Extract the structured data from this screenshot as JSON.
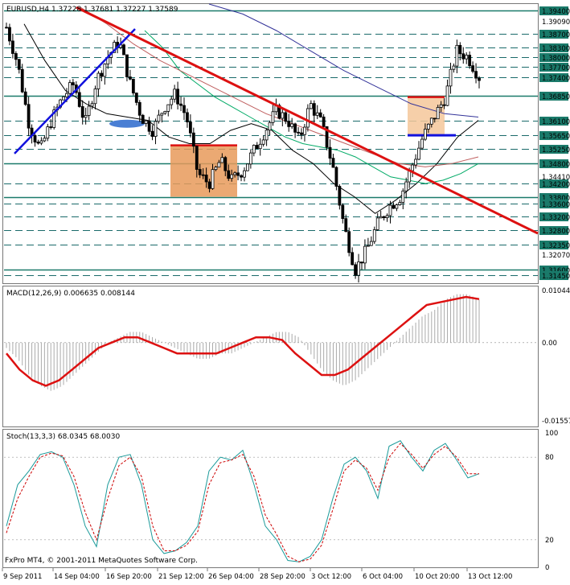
{
  "chart_data": [
    {
      "type": "candlestick",
      "title": "EURUSD,H4  1.37228 1.37681 1.37227 1.37589",
      "ylim": [
        1.312,
        1.396
      ],
      "x_ticks": [
        "9 Sep 2011",
        "14 Sep 04:00",
        "16 Sep 20:00",
        "21 Sep 12:00",
        "26 Sep 04:00",
        "28 Sep 20:00",
        "3 Oct 12:00",
        "6 Oct 04:00",
        "10 Oct 20:00",
        "13 Oct 12:00"
      ],
      "level_lines": [
        {
          "label": "1.39400",
          "value": 1.394,
          "style": "solid"
        },
        {
          "label": "1.38700",
          "value": 1.387,
          "style": "dashed"
        },
        {
          "label": "1.38300",
          "value": 1.383,
          "style": "dashed"
        },
        {
          "label": "1.38000",
          "value": 1.38,
          "style": "dashed"
        },
        {
          "label": "1.37700",
          "value": 1.377,
          "style": "dashed"
        },
        {
          "label": "1.36850",
          "value": 1.3685,
          "style": "solid"
        },
        {
          "label": "1.36100",
          "value": 1.361,
          "style": "dashed"
        },
        {
          "label": "1.35650",
          "value": 1.3565,
          "style": "dashed"
        },
        {
          "label": "1.35250",
          "value": 1.3525,
          "style": "dashed"
        },
        {
          "label": "1.34800",
          "value": 1.348,
          "style": "solid"
        },
        {
          "label": "1.34200",
          "value": 1.342,
          "style": "dashed"
        },
        {
          "label": "1.33800",
          "value": 1.338,
          "style": "solid"
        },
        {
          "label": "1.33600",
          "value": 1.336,
          "style": "dashed"
        },
        {
          "label": "1.33200",
          "value": 1.332,
          "style": "dashed"
        },
        {
          "label": "1.32800",
          "value": 1.328,
          "style": "dashed"
        },
        {
          "label": "1.32350",
          "value": 1.3235,
          "style": "dashed"
        },
        {
          "label": "1.31600",
          "value": 1.316,
          "style": "solid"
        },
        {
          "label": "1.31450",
          "value": 1.3145,
          "style": "dashed"
        }
      ],
      "price_labels": [
        {
          "label": "1.37400",
          "value": 1.374,
          "style": "dashed",
          "highlight": true
        },
        {
          "label": "1.39090",
          "value": 1.3909,
          "style": "none"
        },
        {
          "label": "1.34410",
          "value": 1.3441,
          "style": "none"
        },
        {
          "label": "1.32070",
          "value": 1.3207,
          "style": "none"
        }
      ],
      "close_path": [
        1.389,
        1.378,
        1.36,
        1.352,
        1.361,
        1.368,
        1.372,
        1.36,
        1.373,
        1.38,
        1.385,
        1.372,
        1.362,
        1.358,
        1.365,
        1.369,
        1.362,
        1.345,
        1.342,
        1.349,
        1.343,
        1.346,
        1.352,
        1.358,
        1.364,
        1.361,
        1.355,
        1.366,
        1.36,
        1.347,
        1.329,
        1.316,
        1.322,
        1.33,
        1.335,
        1.338,
        1.347,
        1.356,
        1.362,
        1.368,
        1.382,
        1.38,
        1.374
      ],
      "trend_lines": [
        {
          "color": "#2222dd",
          "from": [
            1.351
          ],
          "to": [
            1.389
          ]
        },
        {
          "color": "#dd1111",
          "from": [
            1.395
          ],
          "to": [
            1.327
          ]
        }
      ],
      "moving_averages": [
        {
          "color": "#000000",
          "points": [
            1.39,
            1.379,
            1.37,
            1.366,
            1.363,
            1.362,
            1.361,
            1.356,
            1.354,
            1.354,
            1.358,
            1.36,
            1.358,
            1.352,
            1.348,
            1.342,
            1.338,
            1.333,
            1.337,
            1.342,
            1.348,
            1.356,
            1.361
          ]
        },
        {
          "color": "#00aa66",
          "points": [
            1.388,
            1.383,
            1.376,
            1.372,
            1.368,
            1.365,
            1.362,
            1.359,
            1.356,
            1.354,
            1.353,
            1.352,
            1.35,
            1.347,
            1.344,
            1.343,
            1.342,
            1.343,
            1.345,
            1.348
          ]
        },
        {
          "color": "#c06060",
          "points": [
            1.395,
            1.39,
            1.384,
            1.379,
            1.375,
            1.371,
            1.367,
            1.363,
            1.36,
            1.357,
            1.354,
            1.351,
            1.348,
            1.347,
            1.348,
            1.35
          ]
        },
        {
          "color": "#333399",
          "points": [
            1.396,
            1.393,
            1.388,
            1.382,
            1.376,
            1.371,
            1.366,
            1.363,
            1.362
          ]
        }
      ],
      "boxes": [
        {
          "color": "#e89a5a",
          "y_top": 1.3535,
          "y_bottom": 1.338
        },
        {
          "color": "#f4c79a",
          "y_top": 1.368,
          "y_bottom": 1.3565
        }
      ]
    },
    {
      "type": "bar",
      "title": "MACD(12,26,9) 0.006635 0.008144",
      "ylim": [
        -0.01557,
        0.01044
      ],
      "y_ticks": [
        "0.01044",
        "0.00",
        "-0.01557"
      ],
      "histogram": [
        -0.001,
        -0.003,
        -0.006,
        -0.008,
        -0.009,
        -0.008,
        -0.006,
        -0.004,
        -0.002,
        -0.0,
        0.001,
        0.002,
        0.002,
        0.001,
        -0.0,
        -0.001,
        -0.002,
        -0.003,
        -0.003,
        -0.002,
        -0.002,
        -0.001,
        0.0,
        0.001,
        0.002,
        0.002,
        0.001,
        -0.002,
        -0.005,
        -0.007,
        -0.008,
        -0.007,
        -0.005,
        -0.003,
        -0.001,
        0.001,
        0.003,
        0.005,
        0.006,
        0.008,
        0.009,
        0.009,
        0.008
      ],
      "signal": [
        -0.002,
        -0.005,
        -0.007,
        -0.008,
        -0.007,
        -0.005,
        -0.003,
        -0.001,
        0.0,
        0.001,
        0.001,
        0.0,
        -0.001,
        -0.002,
        -0.002,
        -0.002,
        -0.002,
        -0.001,
        0.0,
        0.001,
        0.001,
        0.0005,
        -0.002,
        -0.004,
        -0.006,
        -0.006,
        -0.005,
        -0.003,
        -0.001,
        0.001,
        0.003,
        0.005,
        0.007,
        0.0075,
        0.008,
        0.0085,
        0.0081
      ]
    },
    {
      "type": "line",
      "title": "Stoch(13,3,3) 68.0345 68.0030",
      "ylim": [
        0,
        100
      ],
      "y_ticks": [
        "100",
        "80",
        "20",
        "0"
      ],
      "series": [
        {
          "color": "#1a9a9a",
          "values": [
            30,
            60,
            70,
            82,
            84,
            80,
            60,
            30,
            15,
            60,
            80,
            82,
            60,
            20,
            10,
            12,
            18,
            30,
            70,
            80,
            78,
            85,
            60,
            30,
            20,
            5,
            3,
            8,
            20,
            50,
            75,
            80,
            70,
            50,
            88,
            92,
            80,
            70,
            85,
            90,
            78,
            65,
            68
          ]
        },
        {
          "color": "#cc0000",
          "values": [
            25,
            50,
            66,
            80,
            83,
            81,
            66,
            40,
            20,
            50,
            74,
            80,
            66,
            30,
            12,
            12,
            16,
            26,
            60,
            76,
            78,
            82,
            66,
            38,
            24,
            8,
            4,
            6,
            16,
            42,
            70,
            78,
            72,
            56,
            80,
            90,
            82,
            72,
            82,
            88,
            80,
            68,
            68
          ]
        }
      ]
    }
  ],
  "footer": "FxPro MT4, © 2001-2011 MetaQuotes Software Corp."
}
